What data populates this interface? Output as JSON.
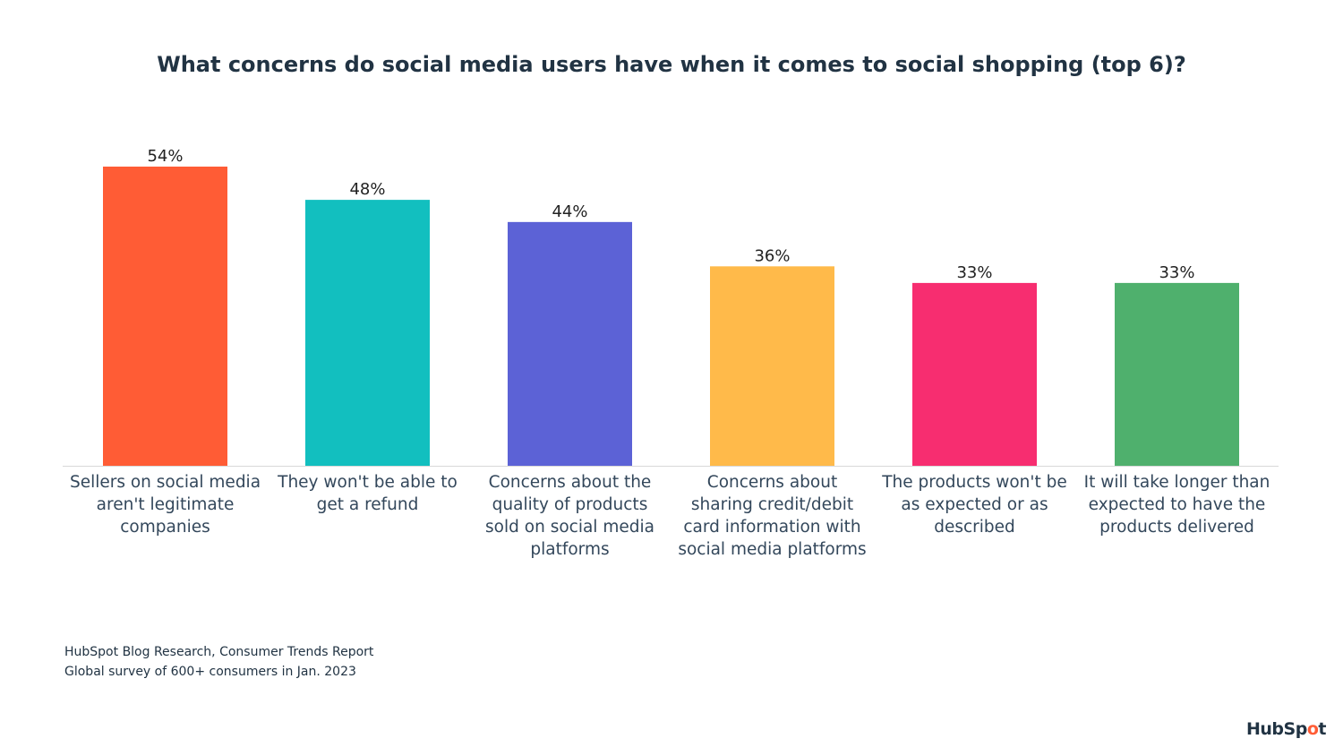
{
  "chart_data": {
    "type": "bar",
    "title": "What concerns do social media users have when it comes to social shopping (top 6)?",
    "categories": [
      "Sellers on social media aren't legitimate companies",
      "They won't be able to get a refund",
      "Concerns about the quality of products sold on social media platforms",
      "Concerns about sharing credit/debit card information with social media platforms",
      "The products won't be as expected or as described",
      "It will take longer than expected to have the products delivered"
    ],
    "category_lines": [
      [
        "Sellers on social media",
        "aren't legitimate",
        "companies"
      ],
      [
        "They won't be able to",
        "get a refund"
      ],
      [
        "Concerns about the",
        "quality of products",
        "sold on social media",
        "platforms"
      ],
      [
        "Concerns about",
        "sharing credit/debit",
        "card information with",
        "social media platforms"
      ],
      [
        "The products won't be",
        "as expected or as",
        "described"
      ],
      [
        "It will take longer than",
        "expected to have the",
        "products delivered"
      ]
    ],
    "values": [
      54,
      48,
      44,
      36,
      33,
      33
    ],
    "data_labels": [
      "54%",
      "48%",
      "44%",
      "36%",
      "33%",
      "33%"
    ],
    "colors": [
      "#ff5c35",
      "#12bfbf",
      "#5c62d6",
      "#ffba4a",
      "#f72d70",
      "#4fb06d"
    ],
    "unit": "%",
    "xlabel": "",
    "ylabel": "",
    "ylim": [
      0,
      54
    ],
    "grid": false,
    "legend": "none"
  },
  "source": {
    "line1": "HubSpot Blog Research, Consumer Trends Report",
    "line2": "Global survey of 600+ consumers in Jan. 2023"
  },
  "logo": {
    "text_a": "HubSp",
    "text_o": "o",
    "text_b": "t"
  }
}
